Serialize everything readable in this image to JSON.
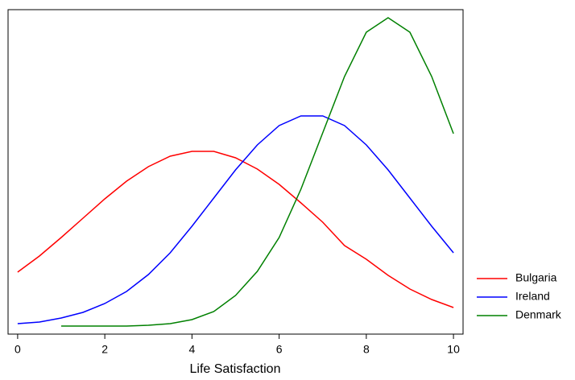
{
  "chart_data": {
    "type": "line",
    "x_label": "Life Satisfaction",
    "x": [
      0,
      0.5,
      1,
      1.5,
      2,
      2.5,
      3,
      3.5,
      4,
      4.5,
      5,
      5.5,
      6,
      6.5,
      7,
      7.5,
      8,
      8.5,
      9,
      9.5,
      10
    ],
    "series": [
      {
        "name": "Bulgaria",
        "color": "#ff0000",
        "values": [
          0.067,
          0.087,
          0.11,
          0.134,
          0.158,
          0.18,
          0.198,
          0.211,
          0.217,
          0.217,
          0.209,
          0.195,
          0.176,
          0.153,
          0.129,
          0.1,
          0.083,
          0.063,
          0.046,
          0.033,
          0.023
        ]
      },
      {
        "name": "Ireland",
        "color": "#0000ff",
        "values": [
          0.003,
          0.005,
          0.01,
          0.017,
          0.028,
          0.043,
          0.064,
          0.091,
          0.124,
          0.159,
          0.194,
          0.225,
          0.249,
          0.261,
          0.261,
          0.249,
          0.225,
          0.194,
          0.159,
          0.124,
          0.091
        ]
      },
      {
        "name": "Denmark",
        "color": "#008000",
        "values": [
          null,
          null,
          0.0,
          0.0,
          0.0,
          0.0,
          0.001,
          0.003,
          0.008,
          0.018,
          0.038,
          0.068,
          0.11,
          0.17,
          0.24,
          0.31,
          0.365,
          0.383,
          0.365,
          0.31,
          0.239
        ]
      }
    ],
    "xlim": [
      -0.22,
      10.22
    ],
    "xticks": [
      0,
      2,
      4,
      6,
      8,
      10
    ],
    "ylim": [
      -0.01,
      0.393
    ],
    "legend": "right"
  }
}
